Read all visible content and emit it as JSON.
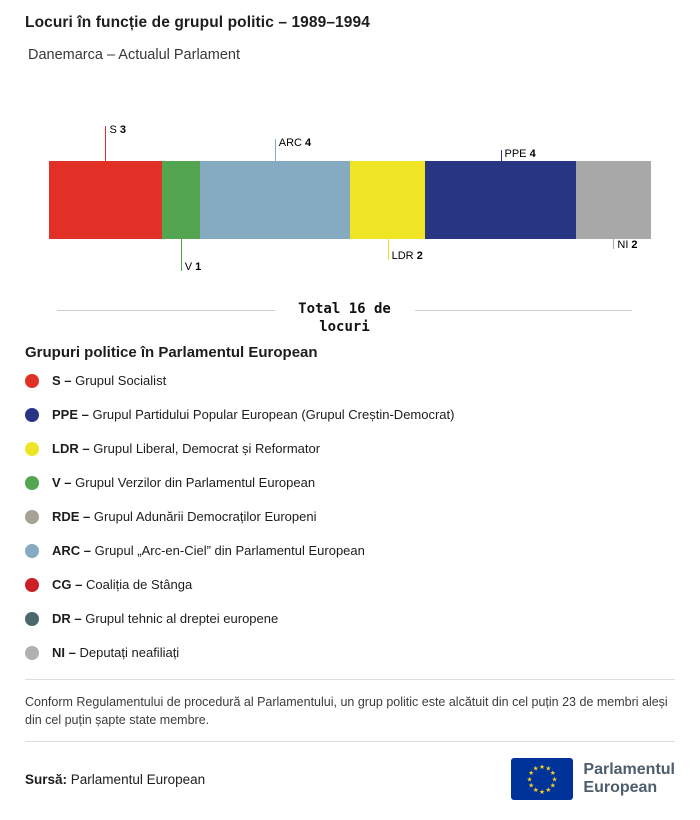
{
  "header": {
    "title": "Locuri în funcție de grupul politic – 1989–1994",
    "subtitle": "Danemarca – Actualul Parlament"
  },
  "chart_data": {
    "type": "bar",
    "orientation": "horizontal-stacked",
    "title": "Locuri în funcție de grupul politic – 1989–1994",
    "subtitle": "Danemarca – Actualul Parlament",
    "total_seats": 16,
    "total_label": "Total 16 de locuri",
    "segments": [
      {
        "code": "S",
        "seats": 3,
        "color": "#e23027",
        "label_pos": "above",
        "label_line": 35
      },
      {
        "code": "V",
        "seats": 1,
        "color": "#53a550",
        "label_pos": "below",
        "label_line": 32
      },
      {
        "code": "ARC",
        "seats": 4,
        "color": "#84abc1",
        "label_pos": "above",
        "label_line": 22
      },
      {
        "code": "LDR",
        "seats": 2,
        "color": "#efe524",
        "label_pos": "below",
        "label_line": 21
      },
      {
        "code": "PPE",
        "seats": 4,
        "color": "#283583",
        "label_pos": "above",
        "label_line": 11
      },
      {
        "code": "NI",
        "seats": 2,
        "color": "#a8a8a8",
        "label_pos": "below",
        "label_line": 10
      }
    ]
  },
  "legend": {
    "heading": "Grupuri politice în Parlamentul European",
    "items": [
      {
        "code": "S –",
        "name": "Grupul Socialist",
        "color": "#e23027"
      },
      {
        "code": "PPE –",
        "name": "Grupul Partidului Popular European (Grupul Creștin-Democrat)",
        "color": "#283583"
      },
      {
        "code": "LDR –",
        "name": "Grupul Liberal, Democrat și Reformator",
        "color": "#efe524"
      },
      {
        "code": "V –",
        "name": "Grupul Verzilor din Parlamentul European",
        "color": "#53a550"
      },
      {
        "code": "RDE –",
        "name": "Grupul Adunării Democraților Europeni",
        "color": "#a7a198"
      },
      {
        "code": "ARC –",
        "name": "Grupul „Arc-en-Ciel” din Parlamentul European",
        "color": "#84abc1"
      },
      {
        "code": "CG –",
        "name": "Coaliția de Stânga",
        "color": "#cb2026"
      },
      {
        "code": "DR –",
        "name": "Grupul tehnic al dreptei europene",
        "color": "#4c686c"
      },
      {
        "code": "NI –",
        "name": "Deputați neafiliați",
        "color": "#b0b0b0"
      }
    ]
  },
  "footnote": "Conform Regulamentului de procedură al Parlamentului, un grup politic este alcătuit din cel puțin 23 de membri aleși din cel puțin șapte state membre.",
  "source": {
    "label": "Sursă:",
    "value": "Parlamentul European"
  },
  "logo": {
    "line1": "Parlamentul",
    "line2": "European",
    "flag_blue": "#003399",
    "star_yellow": "#ffd617",
    "text_color": "#4d5d6c"
  }
}
